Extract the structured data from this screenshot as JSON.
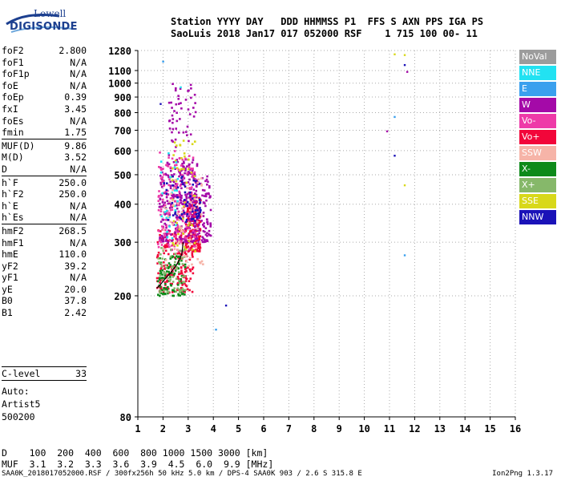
{
  "logo": {
    "line1": "Lowell",
    "line2": "DIGISONDE"
  },
  "header": {
    "line1": "Station YYYY DAY   DDD HHMMSS P1  FFS S AXN PPS IGA PS",
    "line2": "SaoLuis 2018 Jan17 017 052000 RSF    1 715 100 00- 11"
  },
  "params": {
    "group1": [
      {
        "k": "foF2",
        "v": "2.800"
      },
      {
        "k": "foF1",
        "v": "N/A"
      },
      {
        "k": "foF1p",
        "v": "N/A"
      },
      {
        "k": "foE",
        "v": "N/A"
      },
      {
        "k": "foEp",
        "v": "0.39"
      },
      {
        "k": "fxI",
        "v": "3.45"
      },
      {
        "k": "foEs",
        "v": "N/A"
      },
      {
        "k": "fmin",
        "v": "1.75"
      }
    ],
    "group2": [
      {
        "k": "MUF(D)",
        "v": "9.86"
      },
      {
        "k": "M(D)",
        "v": "3.52"
      },
      {
        "k": "D",
        "v": "N/A"
      }
    ],
    "group3": [
      {
        "k": "h`F",
        "v": "250.0"
      },
      {
        "k": "h`F2",
        "v": "250.0"
      },
      {
        "k": "h`E",
        "v": "N/A"
      },
      {
        "k": "h`Es",
        "v": "N/A"
      }
    ],
    "group4": [
      {
        "k": "hmF2",
        "v": "268.5"
      },
      {
        "k": "hmF1",
        "v": "N/A"
      },
      {
        "k": "hmE",
        "v": "110.0"
      },
      {
        "k": "yF2",
        "v": "39.2"
      },
      {
        "k": "yF1",
        "v": "N/A"
      },
      {
        "k": "yE",
        "v": "20.0"
      },
      {
        "k": "B0",
        "v": "37.8"
      },
      {
        "k": "B1",
        "v": "2.42"
      }
    ]
  },
  "clevel": {
    "k": "C-level",
    "v": "33"
  },
  "auto": [
    "Auto:",
    "Artist5",
    "500200"
  ],
  "legend": [
    {
      "label": "NoVal",
      "color": "#9c9c9c"
    },
    {
      "label": "NNE",
      "color": "#22e2f2"
    },
    {
      "label": "E",
      "color": "#3aa0ee"
    },
    {
      "label": "W",
      "color": "#a40aa8"
    },
    {
      "label": "Vo-",
      "color": "#ee3aa8"
    },
    {
      "label": "Vo+",
      "color": "#f2063a"
    },
    {
      "label": "SSW",
      "color": "#f6b4a8"
    },
    {
      "label": "X-",
      "color": "#0e8a1a"
    },
    {
      "label": "X+",
      "color": "#86b86a"
    },
    {
      "label": "SSE",
      "color": "#d8d81a"
    },
    {
      "label": "NNW",
      "color": "#1a12b8"
    }
  ],
  "footer": {
    "line1": "D    100  200  400  600  800 1000 1500 3000 [km]",
    "line2": "MUF  3.1  3.2  3.3  3.6  3.9  4.5  6.0  9.9 [MHz]",
    "file": "SAA0K_2018017052000.RSF / 300fx256h 50 kHz 5.0 km / DPS-4 SAA0K 903 / 2.6 S 315.8 E",
    "version": "Ion2Png 1.3.17"
  },
  "chart_data": {
    "type": "scatter",
    "title": "",
    "xlabel": "",
    "ylabel": "",
    "xlim": [
      1,
      16
    ],
    "ylim": [
      80,
      1280
    ],
    "y_scale": "log",
    "xticks": [
      1,
      2,
      3,
      4,
      5,
      6,
      7,
      8,
      9,
      10,
      11,
      12,
      13,
      14,
      15,
      16
    ],
    "yticks": [
      80,
      200,
      300,
      400,
      500,
      600,
      700,
      800,
      900,
      1000,
      1100,
      1280
    ],
    "grid": true,
    "trace_profile": {
      "name": "F2 trace",
      "color": "#000000",
      "points": [
        [
          1.75,
          212
        ],
        [
          1.9,
          218
        ],
        [
          2.1,
          228
        ],
        [
          2.3,
          238
        ],
        [
          2.5,
          250
        ],
        [
          2.65,
          262
        ],
        [
          2.75,
          275
        ],
        [
          2.8,
          300
        ]
      ]
    },
    "clusters": [
      {
        "color": "#f2063a",
        "x": [
          1.75,
          3.2
        ],
        "y": [
          205,
          330
        ],
        "n": 200
      },
      {
        "color": "#f2063a",
        "x": [
          2.9,
          3.5
        ],
        "y": [
          280,
          420
        ],
        "n": 180
      },
      {
        "color": "#a40aa8",
        "x": [
          1.85,
          3.4
        ],
        "y": [
          300,
          560
        ],
        "n": 220
      },
      {
        "color": "#a40aa8",
        "x": [
          3.0,
          3.9
        ],
        "y": [
          300,
          500
        ],
        "n": 120
      },
      {
        "color": "#a40aa8",
        "x": [
          2.2,
          3.3
        ],
        "y": [
          400,
          1000
        ],
        "n": 120
      },
      {
        "color": "#ee3aa8",
        "x": [
          1.8,
          3.3
        ],
        "y": [
          280,
          600
        ],
        "n": 160
      },
      {
        "color": "#0e8a1a",
        "x": [
          1.8,
          2.9
        ],
        "y": [
          200,
          270
        ],
        "n": 90
      },
      {
        "color": "#86b86a",
        "x": [
          1.8,
          2.9
        ],
        "y": [
          205,
          290
        ],
        "n": 60
      },
      {
        "color": "#d8d81a",
        "x": [
          2.3,
          3.3
        ],
        "y": [
          280,
          650
        ],
        "n": 50
      },
      {
        "color": "#1a12b8",
        "x": [
          2.0,
          3.5
        ],
        "y": [
          350,
          500
        ],
        "n": 60
      },
      {
        "color": "#22e2f2",
        "x": [
          1.9,
          2.6
        ],
        "y": [
          300,
          600
        ],
        "n": 25
      },
      {
        "color": "#f6b4a8",
        "x": [
          2.0,
          3.6
        ],
        "y": [
          250,
          500
        ],
        "n": 60
      }
    ],
    "isolated_points": [
      {
        "x": 11.2,
        "y": 1245,
        "color": "#d8d81a"
      },
      {
        "x": 11.6,
        "y": 1238,
        "color": "#d8d81a"
      },
      {
        "x": 11.6,
        "y": 1148,
        "color": "#1a12b8"
      },
      {
        "x": 11.7,
        "y": 1090,
        "color": "#a40aa8"
      },
      {
        "x": 11.2,
        "y": 775,
        "color": "#3aa0ee"
      },
      {
        "x": 10.9,
        "y": 695,
        "color": "#a40aa8"
      },
      {
        "x": 11.2,
        "y": 578,
        "color": "#1a12b8"
      },
      {
        "x": 11.6,
        "y": 462,
        "color": "#d8d81a"
      },
      {
        "x": 11.6,
        "y": 272,
        "color": "#3aa0ee"
      },
      {
        "x": 4.5,
        "y": 186,
        "color": "#1a12b8"
      },
      {
        "x": 4.1,
        "y": 155,
        "color": "#3aa0ee"
      },
      {
        "x": 2.0,
        "y": 1178,
        "color": "#3aa0ee"
      },
      {
        "x": 1.9,
        "y": 855,
        "color": "#1a12b8"
      },
      {
        "x": 2.7,
        "y": 970,
        "color": "#22e2f2"
      }
    ]
  }
}
